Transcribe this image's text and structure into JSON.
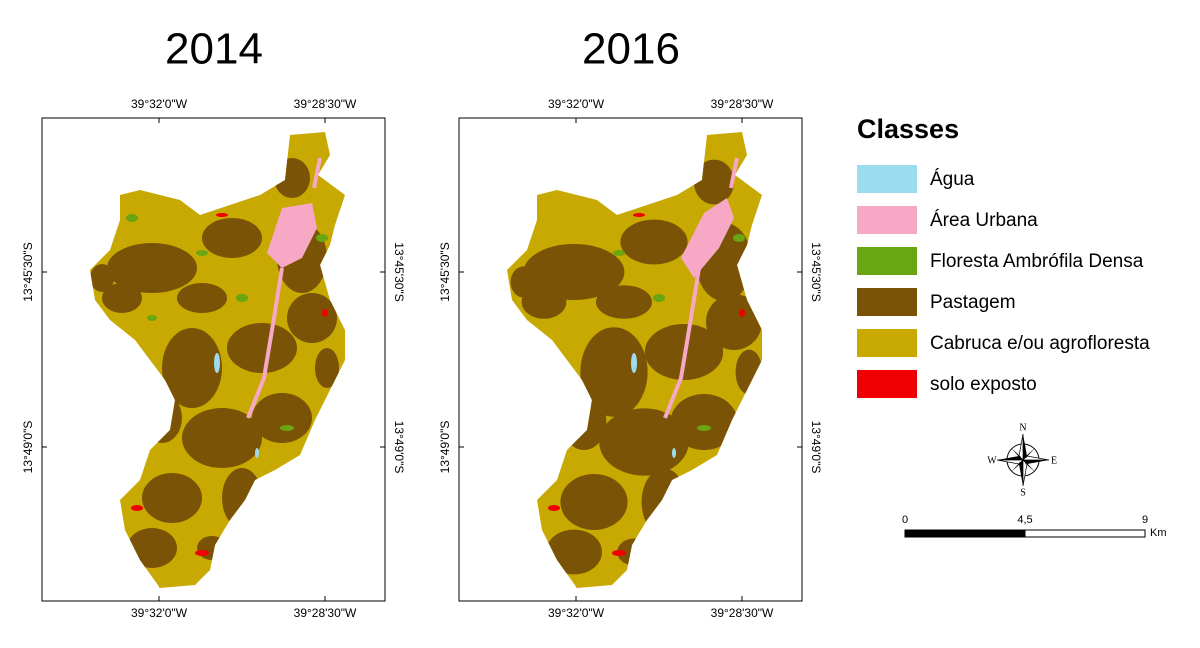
{
  "maps": [
    {
      "title": "2014",
      "lon_labels": [
        "39°32'0\"W",
        "39°28'30\"W"
      ],
      "lat_labels": [
        "13°45'30\"S",
        "13°49'0\"S"
      ]
    },
    {
      "title": "2016",
      "lon_labels": [
        "39°32'0\"W",
        "39°28'30\"W"
      ],
      "lat_labels": [
        "13°45'30\"S",
        "13°49'0\"S"
      ]
    }
  ],
  "legend": {
    "title": "Classes",
    "items": [
      {
        "label": "Água",
        "color": "#9ddcef"
      },
      {
        "label": "Área Urbana",
        "color": "#f7a8c4"
      },
      {
        "label": "Floresta Ambrófila Densa",
        "color": "#6aa512"
      },
      {
        "label": "Pastagem",
        "color": "#7a5306"
      },
      {
        "label": "Cabruca e/ou agrofloresta",
        "color": "#c7a902"
      },
      {
        "label": "solo exposto",
        "color": "#f00000"
      }
    ]
  },
  "north_arrow": {
    "n": "N",
    "s": "S",
    "e": "E",
    "w": "W"
  },
  "scale_bar": {
    "ticks": [
      "0",
      "4,5",
      "9"
    ],
    "unit": "Km"
  }
}
